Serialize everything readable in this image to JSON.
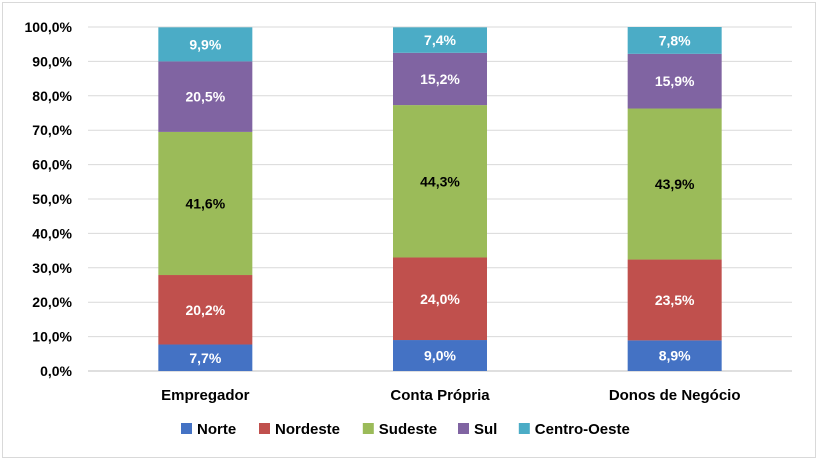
{
  "chart_data": {
    "type": "bar",
    "stacked": true,
    "categories": [
      "Empregador",
      "Conta Própria",
      "Donos de Negócio"
    ],
    "series": [
      {
        "name": "Norte",
        "color": "#4472C4",
        "values": [
          7.7,
          9.0,
          8.9
        ],
        "labels": [
          "7,7%",
          "9,0%",
          "8,9%"
        ],
        "label_color": "#ffffff"
      },
      {
        "name": "Nordeste",
        "color": "#C0504D",
        "values": [
          20.2,
          24.0,
          23.5
        ],
        "labels": [
          "20,2%",
          "24,0%",
          "23,5%"
        ],
        "label_color": "#ffffff"
      },
      {
        "name": "Sudeste",
        "color": "#9BBB59",
        "values": [
          41.6,
          44.3,
          43.9
        ],
        "labels": [
          "41,6%",
          "44,3%",
          "43,9%"
        ],
        "label_color": "#000000"
      },
      {
        "name": "Sul",
        "color": "#8064A2",
        "values": [
          20.5,
          15.2,
          15.9
        ],
        "labels": [
          "20,5%",
          "15,2%",
          "15,9%"
        ],
        "label_color": "#ffffff"
      },
      {
        "name": "Centro-Oeste",
        "color": "#4BACC6",
        "values": [
          9.9,
          7.4,
          7.8
        ],
        "labels": [
          "9,9%",
          "7,4%",
          "7,8%"
        ],
        "label_color": "#ffffff"
      }
    ],
    "yticks": [
      "0,0%",
      "10,0%",
      "20,0%",
      "30,0%",
      "40,0%",
      "50,0%",
      "60,0%",
      "70,0%",
      "80,0%",
      "90,0%",
      "100,0%"
    ],
    "ylim": [
      0,
      100
    ],
    "title": "",
    "xlabel": "",
    "ylabel": "",
    "legend_position": "bottom",
    "grid": true
  }
}
